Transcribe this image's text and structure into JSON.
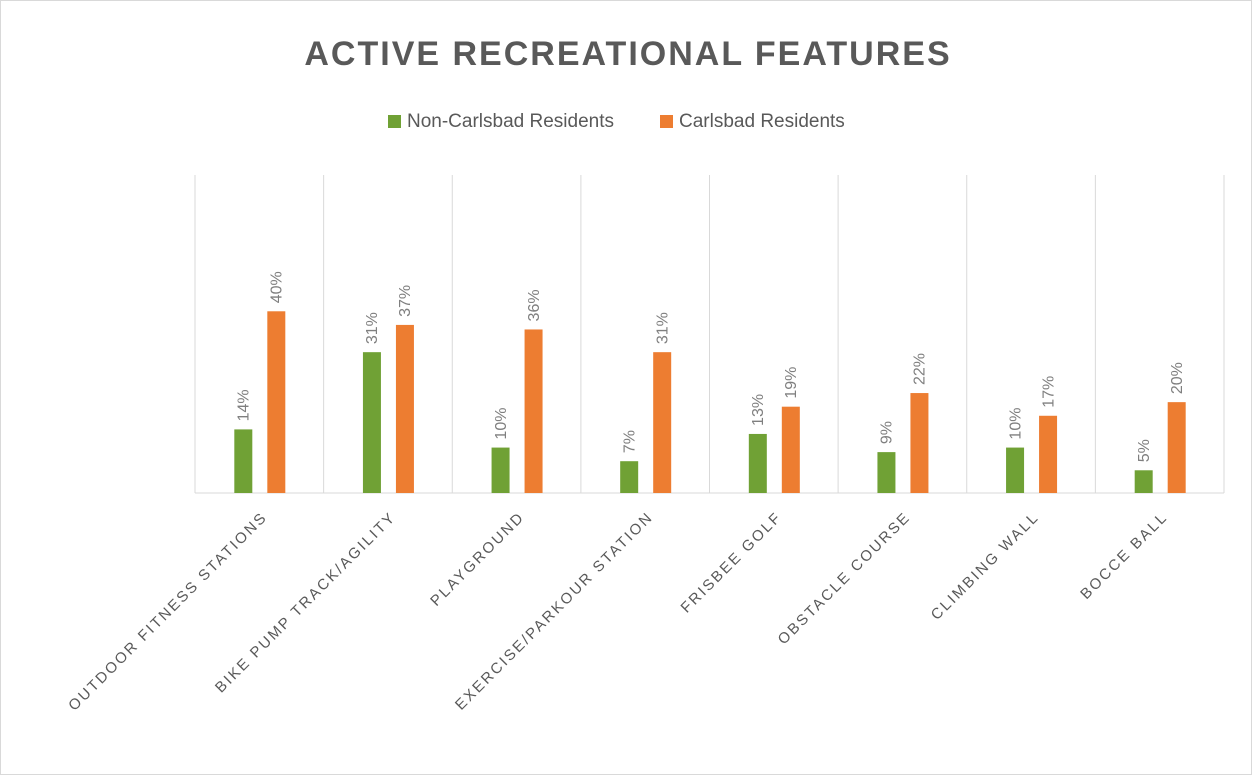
{
  "chart_data": {
    "type": "bar",
    "title": "ACTIVE RECREATIONAL FEATURES",
    "categories": [
      "OUTDOOR FITNESS STATIONS",
      "BIKE PUMP TRACK/AGILITY",
      "PLAYGROUND",
      "EXERCISE/PARKOUR STATION",
      "FRISBEE GOLF",
      "OBSTACLE COURSE",
      "CLIMBING WALL",
      "BOCCE BALL"
    ],
    "series": [
      {
        "name": "Non-Carlsbad Residents",
        "color": "#70a135",
        "values": [
          14,
          31,
          10,
          7,
          13,
          9,
          10,
          5
        ],
        "value_labels": [
          "14%",
          "31%",
          "10%",
          "7%",
          "13%",
          "9%",
          "10%",
          "5%"
        ]
      },
      {
        "name": "Carlsbad Residents",
        "color": "#ed7d31",
        "values": [
          40,
          37,
          36,
          31,
          19,
          22,
          17,
          20
        ],
        "value_labels": [
          "40%",
          "37%",
          "36%",
          "31%",
          "19%",
          "22%",
          "17%",
          "20%"
        ]
      }
    ],
    "ylim": [
      0,
      70
    ],
    "legend": "top"
  }
}
